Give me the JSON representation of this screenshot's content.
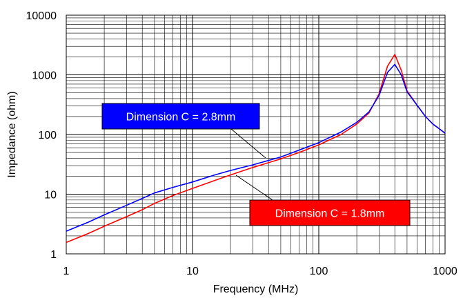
{
  "chart_data": {
    "type": "line",
    "xlabel": "Frequency (MHz)",
    "ylabel": "Impedance (ohm)",
    "x_scale": "log",
    "y_scale": "log",
    "xlim": [
      1,
      1000
    ],
    "ylim": [
      1,
      10000
    ],
    "x_tick_labels": [
      "1",
      "10",
      "100",
      "1000"
    ],
    "y_tick_labels": [
      "1",
      "10",
      "100",
      "1000",
      "10000"
    ],
    "grid": true,
    "series": [
      {
        "name": "Dimension C = 2.8mm",
        "color": "#0000ff",
        "x": [
          1,
          1.5,
          2,
          3,
          4,
          5,
          7,
          10,
          15,
          20,
          30,
          50,
          70,
          100,
          150,
          200,
          250,
          300,
          350,
          400,
          450,
          500,
          600,
          700,
          800,
          900,
          1000
        ],
        "y": [
          2.4,
          3.4,
          4.5,
          6.5,
          8.5,
          10.5,
          13,
          16,
          21,
          25,
          31,
          42,
          55,
          73,
          110,
          160,
          240,
          450,
          1100,
          1500,
          1000,
          520,
          310,
          200,
          150,
          125,
          105
        ]
      },
      {
        "name": "Dimension C = 1.8mm",
        "color": "#ff0000",
        "x": [
          1,
          1.5,
          2,
          3,
          4,
          5,
          7,
          10,
          15,
          20,
          30,
          50,
          70,
          100,
          150,
          200,
          250,
          300,
          350,
          400,
          450,
          500,
          600,
          700,
          800,
          900,
          1000
        ],
        "y": [
          1.55,
          2.2,
          2.9,
          4.2,
          5.5,
          7,
          9.5,
          12.5,
          17,
          21,
          28,
          39,
          50,
          67,
          100,
          150,
          230,
          480,
          1400,
          2200,
          1200,
          540,
          310,
          200,
          150,
          125,
          105
        ]
      }
    ],
    "annotations": [
      {
        "text": "Dimension C = 2.8mm",
        "box_color": "#0000ff",
        "points_to_series": 0
      },
      {
        "text": "Dimension C = 1.8mm",
        "box_color": "#ff0000",
        "points_to_series": 1
      }
    ]
  }
}
